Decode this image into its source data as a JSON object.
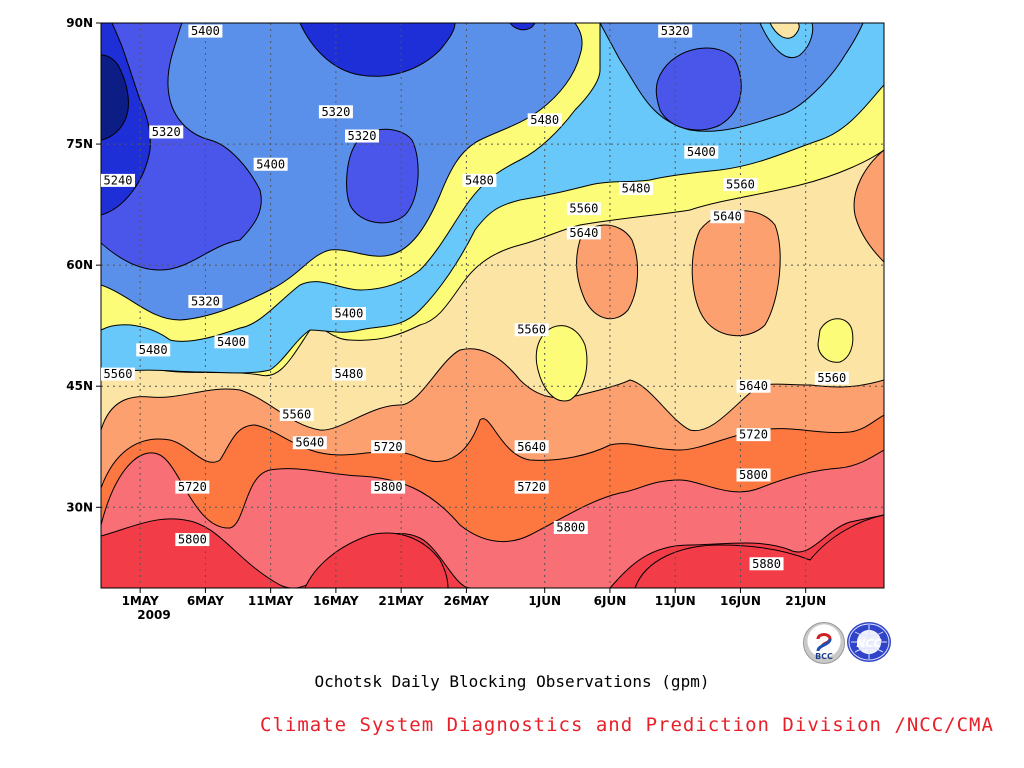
{
  "chart_data": {
    "type": "heatmap",
    "title": "Ochotsk Daily Blocking Observations (gpm)",
    "x_tick_labels": [
      "1MAY",
      "6MAY",
      "11MAY",
      "16MAY",
      "21MAY",
      "26MAY",
      "1JUN",
      "6JUN",
      "11JUN",
      "16JUN",
      "21JUN"
    ],
    "x_year_label": "2009",
    "y_tick_labels": [
      "30N",
      "45N",
      "60N",
      "75N",
      "90N"
    ],
    "xlim": [
      "28 Apr 2009",
      "27 Jun 2009"
    ],
    "ylim": [
      20,
      90
    ],
    "contour_levels": [
      5240,
      5320,
      5400,
      5480,
      5560,
      5640,
      5720,
      5800,
      5880
    ],
    "level_colors": [
      "#0c1d86",
      "#1f2fd8",
      "#4a55ea",
      "#5b90ea",
      "#68c8fa",
      "#fcfc78",
      "#fce4a4",
      "#fca070",
      "#fc7840",
      "#f86f76",
      "#f23d48"
    ],
    "grid": true,
    "contour_labels": [
      {
        "text": "5400",
        "lat": 89,
        "date": "6 May"
      },
      {
        "text": "5320",
        "lat": 89,
        "date": "11 Jun"
      },
      {
        "text": "5320",
        "lat": 76.5,
        "date": "3 May"
      },
      {
        "text": "5320",
        "lat": 79,
        "date": "16 May"
      },
      {
        "text": "5320",
        "lat": 76,
        "date": "18 May"
      },
      {
        "text": "5400",
        "lat": 72.5,
        "date": "11 May"
      },
      {
        "text": "5480",
        "lat": 78,
        "date": "1 Jun"
      },
      {
        "text": "5400",
        "lat": 74,
        "date": "13 Jun"
      },
      {
        "text": "5480",
        "lat": 70.5,
        "date": "27 May"
      },
      {
        "text": "5480",
        "lat": 69.5,
        "date": "8 Jun"
      },
      {
        "text": "5560",
        "lat": 70,
        "date": "16 Jun"
      },
      {
        "text": "5240",
        "lat": 70.5,
        "date": "28 Apr"
      },
      {
        "text": "5560",
        "lat": 67,
        "date": "4 Jun"
      },
      {
        "text": "5640",
        "lat": 66,
        "date": "15 Jun"
      },
      {
        "text": "5640",
        "lat": 64,
        "date": "4 Jun"
      },
      {
        "text": "5320",
        "lat": 55.5,
        "date": "6 May"
      },
      {
        "text": "5400",
        "lat": 54,
        "date": "17 May"
      },
      {
        "text": "5400",
        "lat": 50.5,
        "date": "8 May"
      },
      {
        "text": "5480",
        "lat": 49.5,
        "date": "2 May"
      },
      {
        "text": "5480",
        "lat": 46.5,
        "date": "17 May"
      },
      {
        "text": "5560",
        "lat": 46.5,
        "date": "28 Apr"
      },
      {
        "text": "5560",
        "lat": 52,
        "date": "31 May"
      },
      {
        "text": "5560",
        "lat": 46,
        "date": "23 Jun"
      },
      {
        "text": "5640",
        "lat": 45,
        "date": "17 Jun"
      },
      {
        "text": "5560",
        "lat": 41.5,
        "date": "13 May"
      },
      {
        "text": "5640",
        "lat": 38,
        "date": "14 May"
      },
      {
        "text": "5720",
        "lat": 37.5,
        "date": "20 May"
      },
      {
        "text": "5640",
        "lat": 37.5,
        "date": "31 May"
      },
      {
        "text": "5720",
        "lat": 39,
        "date": "17 Jun"
      },
      {
        "text": "5720",
        "lat": 32.5,
        "date": "5 May"
      },
      {
        "text": "5800",
        "lat": 32.5,
        "date": "20 May"
      },
      {
        "text": "5720",
        "lat": 32.5,
        "date": "31 May"
      },
      {
        "text": "5800",
        "lat": 34,
        "date": "17 Jun"
      },
      {
        "text": "5800",
        "lat": 27.5,
        "date": "3 Jun"
      },
      {
        "text": "5800",
        "lat": 26,
        "date": "5 May"
      },
      {
        "text": "5880",
        "lat": 23,
        "date": "18 Jun"
      }
    ]
  },
  "footer": {
    "credit": "Climate System Diagnostics and Prediction Division /NCC/CMA",
    "credit_color": "#e8202a",
    "logo_left": "BCC",
    "logo_right": "NCC"
  }
}
